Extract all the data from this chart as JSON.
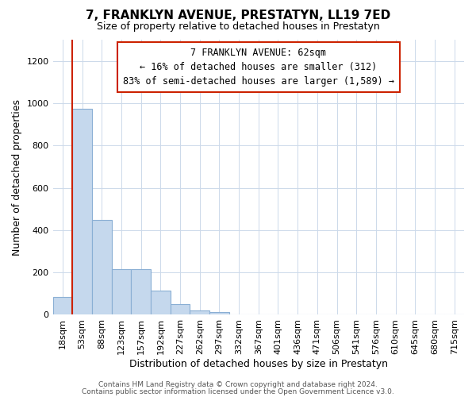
{
  "title": "7, FRANKLYN AVENUE, PRESTATYN, LL19 7ED",
  "subtitle": "Size of property relative to detached houses in Prestatyn",
  "xlabel": "Distribution of detached houses by size in Prestatyn",
  "ylabel": "Number of detached properties",
  "bar_labels": [
    "18sqm",
    "53sqm",
    "88sqm",
    "123sqm",
    "157sqm",
    "192sqm",
    "227sqm",
    "262sqm",
    "297sqm",
    "332sqm",
    "367sqm",
    "401sqm",
    "436sqm",
    "471sqm",
    "506sqm",
    "541sqm",
    "576sqm",
    "610sqm",
    "645sqm",
    "680sqm",
    "715sqm"
  ],
  "bar_heights": [
    85,
    975,
    450,
    215,
    215,
    115,
    50,
    22,
    14,
    0,
    0,
    0,
    0,
    0,
    0,
    0,
    0,
    0,
    0,
    0,
    0
  ],
  "bar_color": "#c5d8ed",
  "bar_edge_color": "#8aafd4",
  "ylim": [
    0,
    1300
  ],
  "yticks": [
    0,
    200,
    400,
    600,
    800,
    1000,
    1200
  ],
  "property_line_color": "#cc2200",
  "annotation_title": "7 FRANKLYN AVENUE: 62sqm",
  "annotation_line1": "← 16% of detached houses are smaller (312)",
  "annotation_line2": "83% of semi-detached houses are larger (1,589) →",
  "annotation_box_color": "#ffffff",
  "annotation_box_edge": "#cc2200",
  "footer1": "Contains HM Land Registry data © Crown copyright and database right 2024.",
  "footer2": "Contains public sector information licensed under the Open Government Licence v3.0.",
  "background_color": "#ffffff",
  "grid_color": "#ccd9ea",
  "title_fontsize": 11,
  "subtitle_fontsize": 9,
  "axis_label_fontsize": 9,
  "tick_fontsize": 8,
  "footer_fontsize": 6.5
}
